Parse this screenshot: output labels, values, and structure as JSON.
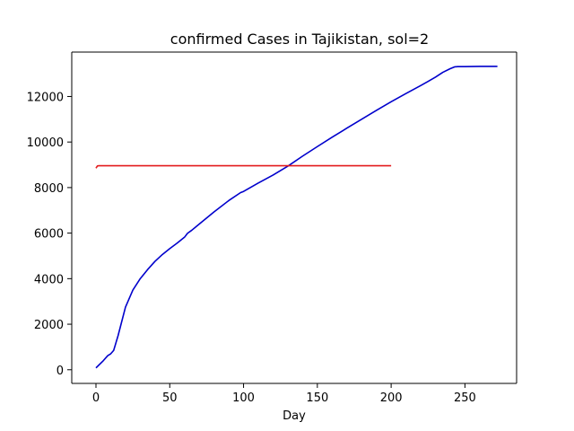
{
  "chart_data": {
    "type": "line",
    "title": "confirmed Cases in Tajikistan, sol=2",
    "xlabel": "Day",
    "ylabel": "",
    "xlim": [
      -16.4,
      285
    ],
    "ylim": [
      -600,
      13950
    ],
    "xticks": [
      0,
      50,
      100,
      150,
      200,
      250
    ],
    "yticks": [
      0,
      2000,
      4000,
      6000,
      8000,
      10000,
      12000
    ],
    "grid": false,
    "legend": "none",
    "series": [
      {
        "color": "#0000cc",
        "x": [
          0,
          5,
          8,
          10,
          12,
          15,
          20,
          25,
          30,
          35,
          40,
          45,
          50,
          55,
          60,
          62,
          65,
          70,
          80,
          90,
          98,
          100,
          110,
          120,
          130,
          140,
          150,
          160,
          170,
          180,
          190,
          200,
          210,
          220,
          225,
          230,
          235,
          240,
          243,
          245,
          250,
          260,
          272
        ],
        "y": [
          80,
          400,
          620,
          700,
          850,
          1500,
          2750,
          3500,
          4000,
          4400,
          4760,
          5060,
          5320,
          5560,
          5820,
          5990,
          6130,
          6400,
          6930,
          7430,
          7780,
          7830,
          8200,
          8550,
          8940,
          9380,
          9800,
          10210,
          10610,
          11000,
          11390,
          11770,
          12130,
          12480,
          12660,
          12850,
          13060,
          13220,
          13300,
          13310,
          13310,
          13320,
          13320
        ]
      },
      {
        "color": "#e31a1c",
        "x": [
          0,
          1,
          2,
          200
        ],
        "y": [
          8850,
          8950,
          8960,
          8960
        ]
      }
    ]
  }
}
